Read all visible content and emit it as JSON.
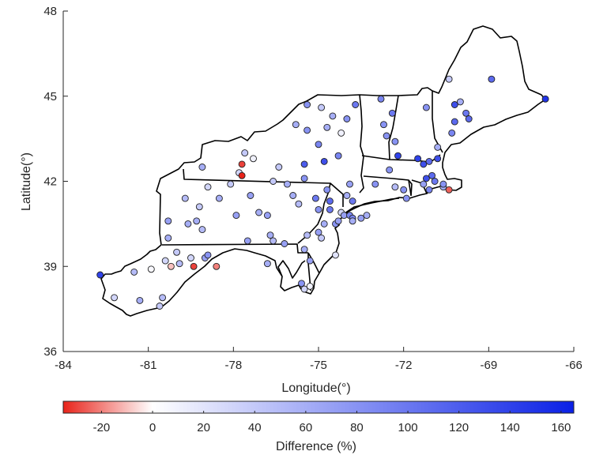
{
  "chart_data": {
    "type": "scatter",
    "xlabel": "Longitude(°)",
    "ylabel": "Latitude(°)",
    "xlim": [
      -84,
      -66
    ],
    "ylim": [
      36,
      48
    ],
    "xticks": [
      "-84",
      "-81",
      "-78",
      "-75",
      "-72",
      "-69",
      "-66"
    ],
    "yticks": [
      "36",
      "39",
      "42",
      "45",
      "48"
    ],
    "grid": false,
    "colorbar": {
      "label": "Difference (%)",
      "range": [
        -35,
        165
      ],
      "ticks": [
        "-20",
        "0",
        "20",
        "40",
        "60",
        "80",
        "100",
        "120",
        "140",
        "160"
      ],
      "colors": {
        "low": "#e8231a",
        "mid": "#ffffff",
        "high": "#0a20e6"
      }
    },
    "points": [
      {
        "lon": -82.7,
        "lat": 38.7,
        "v": 140
      },
      {
        "lon": -82.2,
        "lat": 37.9,
        "v": 30
      },
      {
        "lon": -81.5,
        "lat": 38.8,
        "v": 50
      },
      {
        "lon": -81.3,
        "lat": 37.8,
        "v": 60
      },
      {
        "lon": -80.9,
        "lat": 38.9,
        "v": 5
      },
      {
        "lon": -80.6,
        "lat": 37.6,
        "v": 40
      },
      {
        "lon": -80.5,
        "lat": 37.9,
        "v": 50
      },
      {
        "lon": -80.4,
        "lat": 39.2,
        "v": 30
      },
      {
        "lon": -80.3,
        "lat": 40.0,
        "v": 60
      },
      {
        "lon": -80.3,
        "lat": 40.6,
        "v": 70
      },
      {
        "lon": -80.2,
        "lat": 39.0,
        "v": -10
      },
      {
        "lon": -80.0,
        "lat": 39.5,
        "v": 40
      },
      {
        "lon": -79.9,
        "lat": 39.1,
        "v": 50
      },
      {
        "lon": -79.7,
        "lat": 41.4,
        "v": 50
      },
      {
        "lon": -79.6,
        "lat": 40.5,
        "v": 60
      },
      {
        "lon": -79.5,
        "lat": 39.3,
        "v": 30
      },
      {
        "lon": -79.4,
        "lat": 39.0,
        "v": -30
      },
      {
        "lon": -79.3,
        "lat": 40.6,
        "v": 60
      },
      {
        "lon": -79.2,
        "lat": 41.1,
        "v": 40
      },
      {
        "lon": -79.1,
        "lat": 40.3,
        "v": 50
      },
      {
        "lon": -79.1,
        "lat": 42.5,
        "v": 60
      },
      {
        "lon": -79.0,
        "lat": 39.3,
        "v": 70
      },
      {
        "lon": -78.9,
        "lat": 39.4,
        "v": 80
      },
      {
        "lon": -78.9,
        "lat": 41.8,
        "v": 30
      },
      {
        "lon": -78.6,
        "lat": 39.0,
        "v": -20
      },
      {
        "lon": -78.5,
        "lat": 41.4,
        "v": 60
      },
      {
        "lon": -78.1,
        "lat": 41.9,
        "v": 40
      },
      {
        "lon": -77.9,
        "lat": 40.8,
        "v": 70
      },
      {
        "lon": -77.8,
        "lat": 42.3,
        "v": 30
      },
      {
        "lon": -77.7,
        "lat": 42.6,
        "v": -30
      },
      {
        "lon": -77.7,
        "lat": 42.2,
        "v": -35
      },
      {
        "lon": -77.6,
        "lat": 43.0,
        "v": 40
      },
      {
        "lon": -77.5,
        "lat": 39.9,
        "v": 70
      },
      {
        "lon": -77.4,
        "lat": 41.5,
        "v": 70
      },
      {
        "lon": -77.3,
        "lat": 42.8,
        "v": 10
      },
      {
        "lon": -77.1,
        "lat": 40.9,
        "v": 60
      },
      {
        "lon": -76.8,
        "lat": 39.1,
        "v": 60
      },
      {
        "lon": -76.8,
        "lat": 40.8,
        "v": 70
      },
      {
        "lon": -76.7,
        "lat": 40.1,
        "v": 60
      },
      {
        "lon": -76.6,
        "lat": 39.9,
        "v": 50
      },
      {
        "lon": -76.6,
        "lat": 42.0,
        "v": 40
      },
      {
        "lon": -76.4,
        "lat": 42.5,
        "v": 40
      },
      {
        "lon": -76.2,
        "lat": 39.8,
        "v": 70
      },
      {
        "lon": -76.1,
        "lat": 41.9,
        "v": 60
      },
      {
        "lon": -75.9,
        "lat": 41.5,
        "v": 60
      },
      {
        "lon": -75.8,
        "lat": 44.0,
        "v": 60
      },
      {
        "lon": -75.7,
        "lat": 41.2,
        "v": 50
      },
      {
        "lon": -75.6,
        "lat": 38.4,
        "v": 80
      },
      {
        "lon": -75.5,
        "lat": 38.2,
        "v": 30
      },
      {
        "lon": -75.5,
        "lat": 42.6,
        "v": 120
      },
      {
        "lon": -75.5,
        "lat": 42.1,
        "v": 80
      },
      {
        "lon": -75.5,
        "lat": 39.6,
        "v": 60
      },
      {
        "lon": -75.4,
        "lat": 40.1,
        "v": 50
      },
      {
        "lon": -75.4,
        "lat": 43.8,
        "v": 80
      },
      {
        "lon": -75.4,
        "lat": 44.7,
        "v": 80
      },
      {
        "lon": -75.3,
        "lat": 39.2,
        "v": 70
      },
      {
        "lon": -75.3,
        "lat": 38.3,
        "v": 10
      },
      {
        "lon": -75.1,
        "lat": 41.4,
        "v": 100
      },
      {
        "lon": -75.0,
        "lat": 41.0,
        "v": 80
      },
      {
        "lon": -75.0,
        "lat": 40.2,
        "v": 70
      },
      {
        "lon": -75.0,
        "lat": 43.3,
        "v": 90
      },
      {
        "lon": -74.9,
        "lat": 40.0,
        "v": 40
      },
      {
        "lon": -74.9,
        "lat": 44.6,
        "v": 40
      },
      {
        "lon": -74.8,
        "lat": 40.5,
        "v": 60
      },
      {
        "lon": -74.8,
        "lat": 42.7,
        "v": 130
      },
      {
        "lon": -74.7,
        "lat": 41.7,
        "v": 80
      },
      {
        "lon": -74.7,
        "lat": 43.9,
        "v": 60
      },
      {
        "lon": -74.6,
        "lat": 41.0,
        "v": 100
      },
      {
        "lon": -74.6,
        "lat": 41.3,
        "v": 110
      },
      {
        "lon": -74.5,
        "lat": 44.3,
        "v": 60
      },
      {
        "lon": -74.4,
        "lat": 39.4,
        "v": 20
      },
      {
        "lon": -74.4,
        "lat": 40.5,
        "v": 80
      },
      {
        "lon": -74.3,
        "lat": 40.6,
        "v": 70
      },
      {
        "lon": -74.3,
        "lat": 42.9,
        "v": 90
      },
      {
        "lon": -74.2,
        "lat": 40.9,
        "v": 30
      },
      {
        "lon": -74.2,
        "lat": 43.7,
        "v": 10
      },
      {
        "lon": -74.1,
        "lat": 40.8,
        "v": 70
      },
      {
        "lon": -74.0,
        "lat": 41.5,
        "v": 60
      },
      {
        "lon": -74.0,
        "lat": 44.2,
        "v": 80
      },
      {
        "lon": -73.9,
        "lat": 40.8,
        "v": 90
      },
      {
        "lon": -73.9,
        "lat": 41.9,
        "v": 70
      },
      {
        "lon": -73.8,
        "lat": 40.7,
        "v": 90
      },
      {
        "lon": -73.8,
        "lat": 41.3,
        "v": 100
      },
      {
        "lon": -73.8,
        "lat": 40.6,
        "v": 60
      },
      {
        "lon": -73.7,
        "lat": 44.7,
        "v": 100
      },
      {
        "lon": -73.5,
        "lat": 40.7,
        "v": 70
      },
      {
        "lon": -73.3,
        "lat": 40.8,
        "v": 60
      },
      {
        "lon": -73.0,
        "lat": 41.9,
        "v": 80
      },
      {
        "lon": -72.8,
        "lat": 44.9,
        "v": 90
      },
      {
        "lon": -72.7,
        "lat": 44.0,
        "v": 80
      },
      {
        "lon": -72.6,
        "lat": 43.6,
        "v": 80
      },
      {
        "lon": -72.5,
        "lat": 42.4,
        "v": 80
      },
      {
        "lon": -72.4,
        "lat": 44.4,
        "v": 100
      },
      {
        "lon": -72.3,
        "lat": 43.4,
        "v": 80
      },
      {
        "lon": -72.3,
        "lat": 41.8,
        "v": 50
      },
      {
        "lon": -72.2,
        "lat": 42.9,
        "v": 140
      },
      {
        "lon": -72.0,
        "lat": 41.7,
        "v": 80
      },
      {
        "lon": -71.9,
        "lat": 41.4,
        "v": 80
      },
      {
        "lon": -71.5,
        "lat": 42.8,
        "v": 140
      },
      {
        "lon": -71.3,
        "lat": 41.9,
        "v": 70
      },
      {
        "lon": -71.3,
        "lat": 42.6,
        "v": 130
      },
      {
        "lon": -71.2,
        "lat": 44.6,
        "v": 80
      },
      {
        "lon": -71.2,
        "lat": 42.1,
        "v": 130
      },
      {
        "lon": -71.1,
        "lat": 42.7,
        "v": 110
      },
      {
        "lon": -71.1,
        "lat": 41.7,
        "v": 90
      },
      {
        "lon": -71.0,
        "lat": 42.2,
        "v": 110
      },
      {
        "lon": -70.9,
        "lat": 42.0,
        "v": 100
      },
      {
        "lon": -70.8,
        "lat": 42.8,
        "v": 130
      },
      {
        "lon": -70.8,
        "lat": 43.2,
        "v": 60
      },
      {
        "lon": -70.6,
        "lat": 41.8,
        "v": 60
      },
      {
        "lon": -70.6,
        "lat": 41.9,
        "v": 80
      },
      {
        "lon": -70.4,
        "lat": 41.7,
        "v": -25
      },
      {
        "lon": -70.4,
        "lat": 45.6,
        "v": 40
      },
      {
        "lon": -70.3,
        "lat": 43.7,
        "v": 90
      },
      {
        "lon": -70.2,
        "lat": 44.7,
        "v": 130
      },
      {
        "lon": -70.2,
        "lat": 44.1,
        "v": 110
      },
      {
        "lon": -70.0,
        "lat": 44.8,
        "v": 60
      },
      {
        "lon": -69.8,
        "lat": 44.4,
        "v": 100
      },
      {
        "lon": -69.7,
        "lat": 44.2,
        "v": 110
      },
      {
        "lon": -68.9,
        "lat": 45.6,
        "v": 110
      },
      {
        "lon": -67.0,
        "lat": 44.9,
        "v": 150
      }
    ]
  }
}
